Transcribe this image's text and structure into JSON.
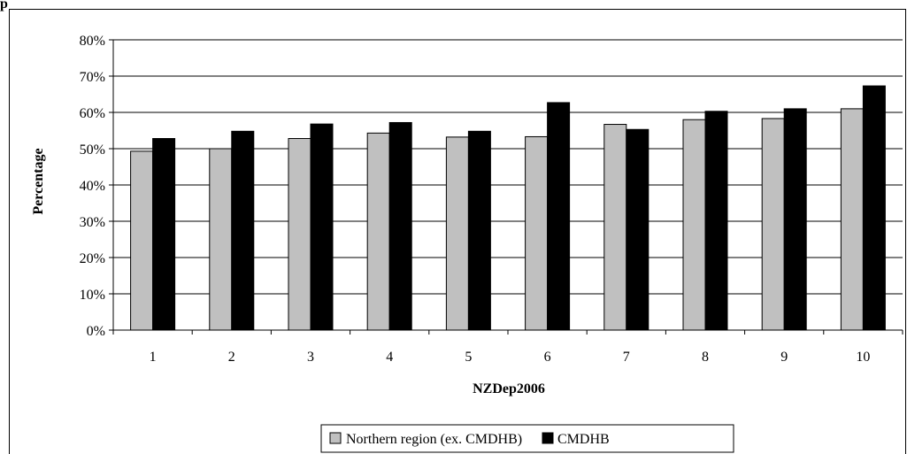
{
  "corner_fragment": "p",
  "chart_data": {
    "type": "bar",
    "title": "",
    "xlabel": "NZDep2006",
    "ylabel": "Percentage",
    "categories": [
      "1",
      "2",
      "3",
      "4",
      "5",
      "6",
      "7",
      "8",
      "9",
      "10"
    ],
    "ylim": [
      0,
      80
    ],
    "yticks": [
      "0%",
      "10%",
      "20%",
      "30%",
      "40%",
      "50%",
      "60%",
      "70%",
      "80%"
    ],
    "grid": true,
    "legend_position": "bottom",
    "series": [
      {
        "name": "Northern region (ex. CMDHB)",
        "color": "#c0c0c0",
        "values": [
          49.3,
          50.0,
          52.8,
          54.3,
          53.2,
          53.3,
          56.7,
          58.0,
          58.3,
          61.0
        ]
      },
      {
        "name": "CMDHB",
        "color": "#000000",
        "values": [
          52.8,
          54.8,
          56.8,
          57.2,
          54.8,
          62.7,
          55.3,
          60.3,
          61.0,
          67.3
        ]
      }
    ]
  }
}
